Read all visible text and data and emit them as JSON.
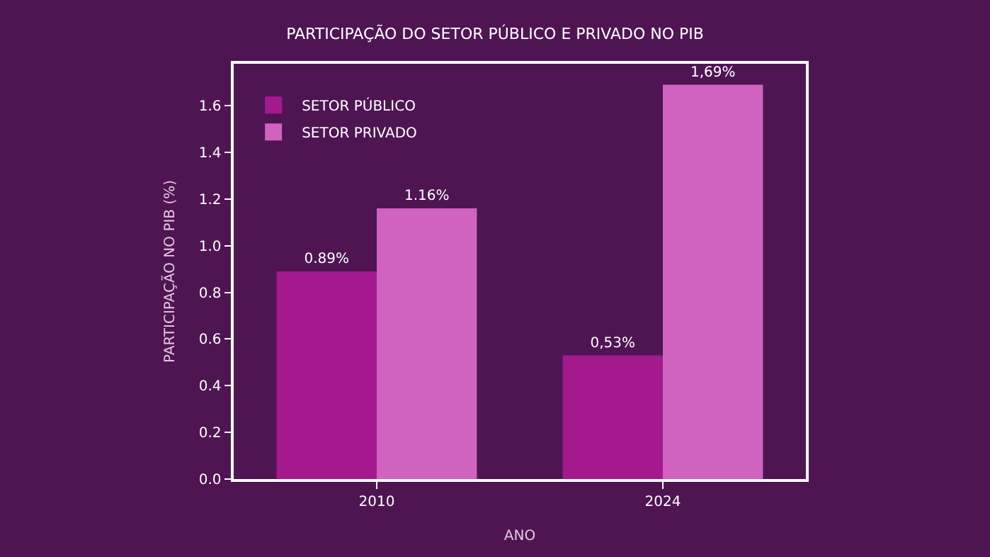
{
  "chart_data": {
    "type": "bar",
    "title": "PARTICIPAÇÃO DO SETOR PÚBLICO E PRIVADO NO PIB",
    "xlabel": "ANO",
    "ylabel": "PARTICIPAÇÃO NO PIB (%)",
    "categories": [
      "2010",
      "2024"
    ],
    "series": [
      {
        "name": "SETOR PÚBLICO",
        "color": "#a5198f",
        "values": [
          0.89,
          0.53
        ],
        "value_labels": [
          "0.89%",
          "0,53%"
        ]
      },
      {
        "name": "SETOR PRIVADO",
        "color": "#d063bf",
        "values": [
          1.16,
          1.69
        ],
        "value_labels": [
          "1.16%",
          "1,69%"
        ]
      }
    ],
    "ylim": [
      0,
      1.78
    ],
    "yticks": [
      {
        "value": 0,
        "label": "0.0"
      },
      {
        "value": 0.2,
        "label": "0.2"
      },
      {
        "value": 0.4,
        "label": "0.4"
      },
      {
        "value": 0.6,
        "label": "0.6"
      },
      {
        "value": 0.8,
        "label": "0.8"
      },
      {
        "value": 1.0,
        "label": "1.0"
      },
      {
        "value": 1.2,
        "label": "1.2"
      },
      {
        "value": 1.4,
        "label": "1.4"
      },
      {
        "value": 1.6,
        "label": "1.6"
      }
    ],
    "grid": false,
    "legend": "top left"
  }
}
